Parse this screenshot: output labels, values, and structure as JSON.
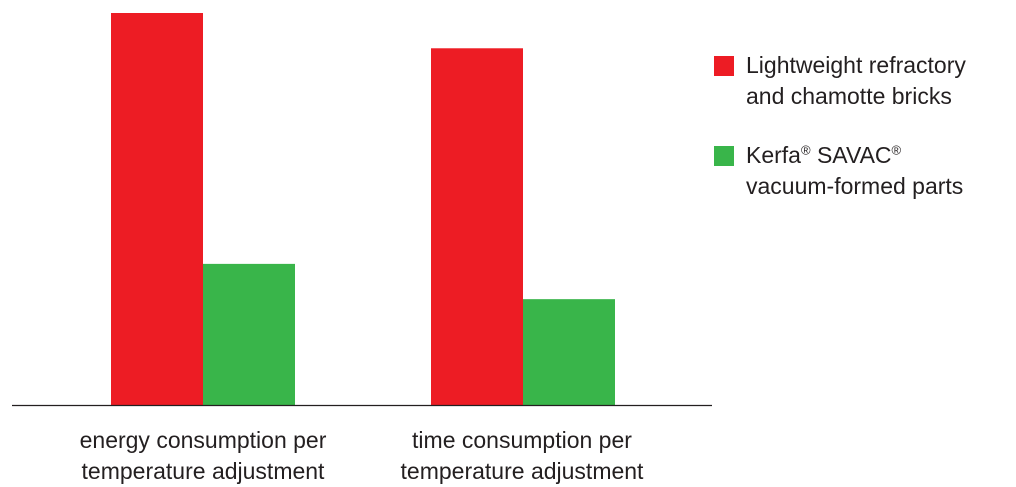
{
  "chart_data": {
    "type": "bar",
    "categories": [
      [
        "energy consumption per",
        "temperature adjustment"
      ],
      [
        "time consumption per",
        "temperature adjustment"
      ]
    ],
    "series": [
      {
        "name": "Lightweight refractory and chamotte bricks",
        "color": "#ed1c24",
        "values": [
          100,
          91
        ]
      },
      {
        "name": "Kerfa® SAVAC® vacuum-formed parts",
        "color": "#39b54a",
        "values": [
          36,
          27
        ]
      }
    ],
    "ylim": [
      0,
      100
    ],
    "grid": false,
    "axis_ticks": false,
    "legend_position": "right"
  },
  "legend": {
    "items": [
      {
        "line1": "Lightweight refractory",
        "line2": "and chamotte bricks",
        "color": "#ed1c24"
      },
      {
        "brand": "Kerfa",
        "reg1": "®",
        "product": " SAVAC",
        "reg2": "®",
        "line2": "vacuum-formed parts",
        "color": "#39b54a"
      }
    ]
  }
}
